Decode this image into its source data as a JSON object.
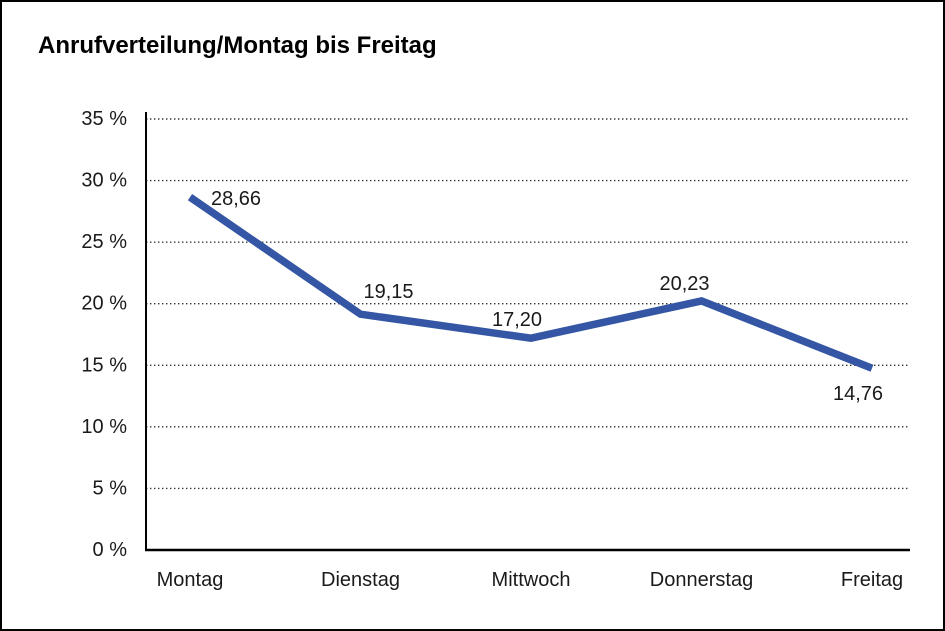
{
  "window": {
    "title": "Anrufverteilung/Montag bis Freitag"
  },
  "chart_data": {
    "type": "line",
    "title": "Anrufverteilung/Montag bis Freitag",
    "categories": [
      "Montag",
      "Dienstag",
      "Mittwoch",
      "Donnerstag",
      "Freitag"
    ],
    "series": [
      {
        "name": "Anrufverteilung",
        "values": [
          28.66,
          19.15,
          17.2,
          20.23,
          14.76
        ]
      }
    ],
    "value_labels": [
      "28,66",
      "19,15",
      "17,20",
      "20,23",
      "14,76"
    ],
    "xlabel": "",
    "ylabel": "",
    "ylim": [
      0,
      35
    ],
    "y_tick_step": 5,
    "y_tick_labels": [
      "0 %",
      "5 %",
      "10 %",
      "15 %",
      "20 %",
      "25 %",
      "30 %",
      "35 %"
    ],
    "grid": "horizontal dotted",
    "legend_position": "none",
    "colors": {
      "line": "#3456A4",
      "grid": "#333333",
      "axis": "#000000",
      "text": "#1A1A1A",
      "background": "#FFFFFF",
      "frame_border": "#000000"
    }
  }
}
